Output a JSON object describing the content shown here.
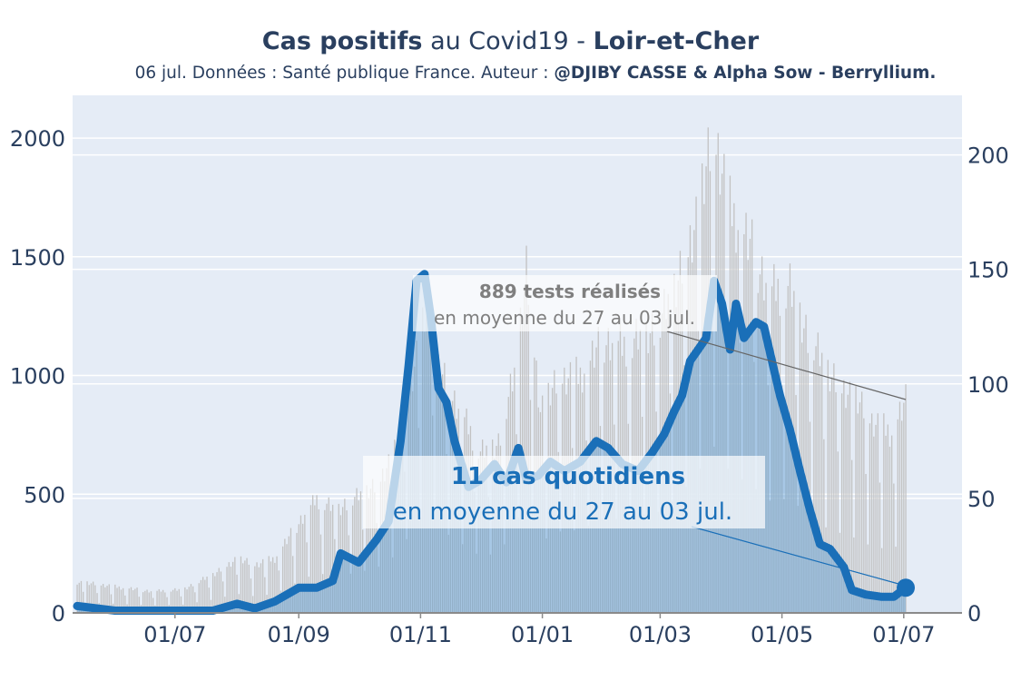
{
  "title": {
    "part1": "Cas positifs",
    "part2": " au Covid19 - ",
    "part3": "Loir-et-Cher"
  },
  "subtitle": {
    "text": "06 jul. Données : Santé publique France. Auteur : ",
    "author": "@DJIBY CASSE & Alpha Sow - Berryllium."
  },
  "colors": {
    "plot_bg": "#e5ecf6",
    "cases_line": "#1a6fb8",
    "cases_fill": "#5b9bd1",
    "tests_bars": "#c8c8c8",
    "text": "#2a3f5f",
    "annotation_gray": "#7f7f7f"
  },
  "annotations": {
    "tests_line1": "889 tests réalisés",
    "tests_line2": "en moyenne du 27 au 03 jul.",
    "cases_line1": "11 cas quotidiens",
    "cases_line2": "en moyenne du 27 au 03 jul."
  },
  "chart_data": {
    "type": "line",
    "x_start": "2020-05-13",
    "x_end": "2021-07-02",
    "x_tick_labels": [
      "01/07",
      "01/09",
      "01/11",
      "01/01",
      "01/03",
      "01/05",
      "01/07"
    ],
    "x_tick_dates": [
      "2020-07-01",
      "2020-09-01",
      "2020-11-01",
      "2021-01-01",
      "2021-03-01",
      "2021-05-01",
      "2021-07-01"
    ],
    "y_left": {
      "ticks": [
        0,
        500,
        1000,
        1500,
        2000
      ],
      "range": [
        0,
        2180
      ]
    },
    "y_right": {
      "ticks": [
        0,
        50,
        100,
        150,
        200
      ],
      "range": [
        0,
        226
      ]
    },
    "grid": true,
    "series": [
      {
        "axis": "left",
        "kind": "bars",
        "points": [
          [
            "2020-05-13",
            130
          ],
          [
            "2020-06-01",
            110
          ],
          [
            "2020-06-20",
            90
          ],
          [
            "2020-07-05",
            100
          ],
          [
            "2020-07-20",
            160
          ],
          [
            "2020-08-01",
            230
          ],
          [
            "2020-08-10",
            200
          ],
          [
            "2020-08-20",
            230
          ],
          [
            "2020-09-01",
            380
          ],
          [
            "2020-09-10",
            480
          ],
          [
            "2020-09-20",
            440
          ],
          [
            "2020-10-01",
            490
          ],
          [
            "2020-10-10",
            540
          ],
          [
            "2020-10-20",
            700
          ],
          [
            "2020-10-28",
            1000
          ],
          [
            "2020-11-05",
            1300
          ],
          [
            "2020-11-10",
            1020
          ],
          [
            "2020-11-20",
            860
          ],
          [
            "2020-12-01",
            680
          ],
          [
            "2020-12-10",
            720
          ],
          [
            "2020-12-18",
            1000
          ],
          [
            "2020-12-24",
            1450
          ],
          [
            "2020-12-31",
            860
          ],
          [
            "2021-01-10",
            980
          ],
          [
            "2021-01-20",
            1000
          ],
          [
            "2021-02-01",
            1150
          ],
          [
            "2021-02-10",
            1120
          ],
          [
            "2021-02-20",
            1180
          ],
          [
            "2021-03-01",
            1220
          ],
          [
            "2021-03-10",
            1400
          ],
          [
            "2021-03-20",
            1700
          ],
          [
            "2021-03-28",
            2000
          ],
          [
            "2021-04-05",
            1700
          ],
          [
            "2021-04-15",
            1550
          ],
          [
            "2021-04-25",
            1350
          ],
          [
            "2021-05-05",
            1380
          ],
          [
            "2021-05-15",
            1150
          ],
          [
            "2021-05-25",
            1000
          ],
          [
            "2021-06-05",
            920
          ],
          [
            "2021-06-15",
            800
          ],
          [
            "2021-06-25",
            760
          ],
          [
            "2021-07-02",
            889
          ]
        ]
      },
      {
        "axis": "right",
        "kind": "line",
        "points": [
          [
            "2020-05-13",
            3
          ],
          [
            "2020-06-01",
            1
          ],
          [
            "2020-06-15",
            1
          ],
          [
            "2020-07-01",
            1
          ],
          [
            "2020-07-20",
            1
          ],
          [
            "2020-08-01",
            4
          ],
          [
            "2020-08-10",
            2
          ],
          [
            "2020-08-20",
            5
          ],
          [
            "2020-09-01",
            11
          ],
          [
            "2020-09-10",
            11
          ],
          [
            "2020-09-18",
            14
          ],
          [
            "2020-09-22",
            26
          ],
          [
            "2020-10-01",
            22
          ],
          [
            "2020-10-10",
            32
          ],
          [
            "2020-10-16",
            40
          ],
          [
            "2020-10-22",
            75
          ],
          [
            "2020-10-26",
            108
          ],
          [
            "2020-10-30",
            145
          ],
          [
            "2020-11-03",
            148
          ],
          [
            "2020-11-06",
            130
          ],
          [
            "2020-11-10",
            98
          ],
          [
            "2020-11-14",
            92
          ],
          [
            "2020-11-18",
            75
          ],
          [
            "2020-11-25",
            55
          ],
          [
            "2020-12-01",
            58
          ],
          [
            "2020-12-08",
            65
          ],
          [
            "2020-12-14",
            57
          ],
          [
            "2020-12-20",
            72
          ],
          [
            "2020-12-24",
            58
          ],
          [
            "2020-12-30",
            60
          ],
          [
            "2021-01-05",
            66
          ],
          [
            "2021-01-12",
            62
          ],
          [
            "2021-01-20",
            66
          ],
          [
            "2021-01-28",
            75
          ],
          [
            "2021-02-03",
            72
          ],
          [
            "2021-02-10",
            65
          ],
          [
            "2021-02-18",
            62
          ],
          [
            "2021-02-25",
            70
          ],
          [
            "2021-03-03",
            78
          ],
          [
            "2021-03-08",
            88
          ],
          [
            "2021-03-12",
            95
          ],
          [
            "2021-03-16",
            110
          ],
          [
            "2021-03-20",
            115
          ],
          [
            "2021-03-24",
            120
          ],
          [
            "2021-03-28",
            145
          ],
          [
            "2021-04-01",
            135
          ],
          [
            "2021-04-05",
            115
          ],
          [
            "2021-04-08",
            135
          ],
          [
            "2021-04-12",
            120
          ],
          [
            "2021-04-18",
            127
          ],
          [
            "2021-04-22",
            125
          ],
          [
            "2021-04-26",
            110
          ],
          [
            "2021-04-30",
            95
          ],
          [
            "2021-05-05",
            80
          ],
          [
            "2021-05-10",
            62
          ],
          [
            "2021-05-15",
            45
          ],
          [
            "2021-05-20",
            30
          ],
          [
            "2021-05-25",
            28
          ],
          [
            "2021-06-01",
            20
          ],
          [
            "2021-06-05",
            10
          ],
          [
            "2021-06-12",
            8
          ],
          [
            "2021-06-20",
            7
          ],
          [
            "2021-06-26",
            7
          ],
          [
            "2021-07-02",
            11
          ]
        ]
      }
    ]
  }
}
